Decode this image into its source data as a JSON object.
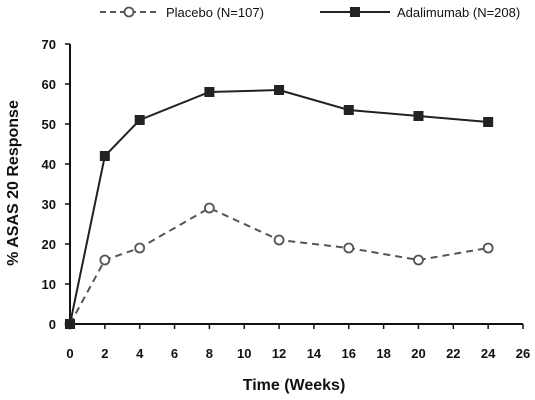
{
  "chart_data": {
    "type": "line",
    "title": "",
    "xlabel": "Time (Weeks)",
    "ylabel": "% ASAS 20 Response",
    "xlim": [
      0,
      26
    ],
    "ylim": [
      0,
      70
    ],
    "xticks": [
      0,
      2,
      4,
      6,
      8,
      10,
      12,
      14,
      16,
      18,
      20,
      22,
      24,
      26
    ],
    "yticks": [
      0,
      10,
      20,
      30,
      40,
      50,
      60,
      70
    ],
    "grid": false,
    "legend": "top",
    "series": [
      {
        "name": "Placebo (N=107)",
        "style": "dashed",
        "marker": "open-circle",
        "color": "#555555",
        "x": [
          0,
          2,
          4,
          8,
          12,
          16,
          20,
          24
        ],
        "y": [
          0,
          16,
          19,
          29,
          21,
          19,
          16,
          19
        ]
      },
      {
        "name": "Adalimumab (N=208)",
        "style": "solid",
        "marker": "filled-square",
        "color": "#222222",
        "x": [
          0,
          2,
          4,
          8,
          12,
          16,
          20,
          24
        ],
        "y": [
          0,
          42,
          51,
          58,
          58.5,
          53.5,
          52,
          50.5
        ]
      }
    ]
  }
}
